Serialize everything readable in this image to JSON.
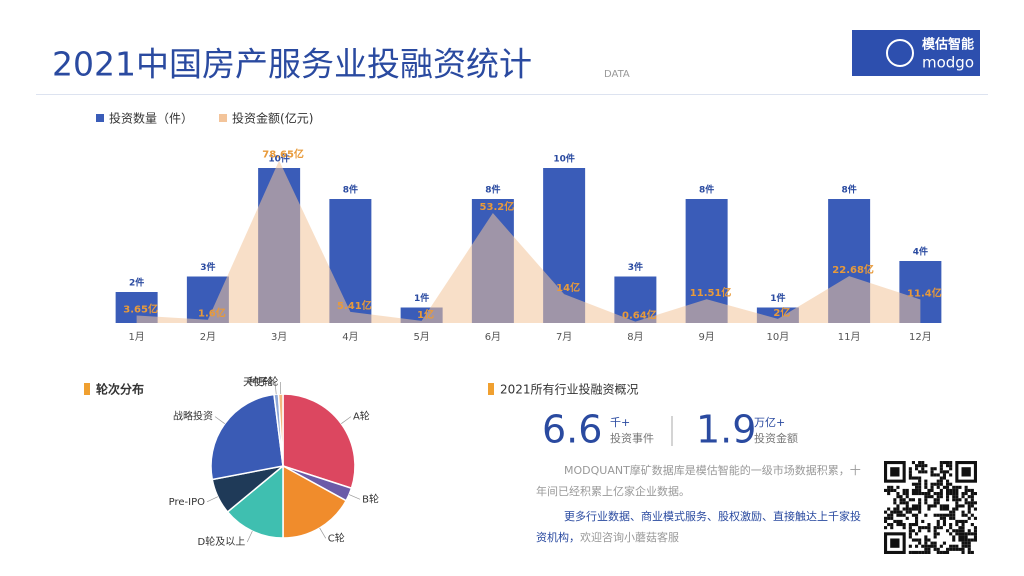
{
  "header": {
    "title": "2021中国房产服务业投融资统计",
    "subtitle": "DATA",
    "logo_cn": "模估智能",
    "logo_en": "modgo"
  },
  "chart_data": [
    {
      "type": "bar",
      "categories": [
        "1月",
        "2月",
        "3月",
        "4月",
        "5月",
        "6月",
        "7月",
        "8月",
        "9月",
        "10月",
        "11月",
        "12月"
      ],
      "series": [
        {
          "name": "投资数量（件）",
          "type": "bar",
          "color": "#3a5cb8",
          "values": [
            2,
            3,
            10,
            8,
            1,
            8,
            10,
            3,
            8,
            1,
            8,
            4
          ],
          "value_labels": [
            "2件",
            "3件",
            "10件",
            "8件",
            "1件",
            "8件",
            "10件",
            "3件",
            "8件",
            "1件",
            "8件",
            "4件"
          ]
        },
        {
          "name": "投资金额(亿元)",
          "type": "area",
          "axis": "y2",
          "color": "#f3c49a",
          "values": [
            3.65,
            1.6,
            78.65,
            5.41,
            1,
            53.2,
            14,
            0.64,
            11.51,
            2,
            22.68,
            11.4
          ],
          "value_labels": [
            "3.65亿",
            "1.6亿",
            "78.65亿",
            "5.41亿",
            "1亿",
            "53.2亿",
            "14亿",
            "0.64亿",
            "11.51亿",
            "2亿",
            "22.68亿",
            "11.4亿"
          ]
        }
      ],
      "ylim": [
        0,
        12
      ],
      "y2lim": [
        0,
        90
      ]
    },
    {
      "type": "pie",
      "title": "轮次分布",
      "categories": [
        "A轮",
        "B轮",
        "C轮",
        "D轮及以上",
        "Pre-IPO",
        "战略投资",
        "天使轮",
        "种子轮"
      ],
      "values": [
        30,
        3,
        17,
        14,
        8,
        26,
        1,
        1
      ],
      "colors": [
        "#dc4760",
        "#6b5ba8",
        "#f08c2c",
        "#3fbfb0",
        "#1f3a58",
        "#3a5bb5",
        "#8fa9d8",
        "#f2b880"
      ]
    }
  ],
  "summary": {
    "title": "2021所有行业投融资概况",
    "stat1": {
      "value": "6.6",
      "unit": "千+",
      "label": "投资事件"
    },
    "stat2": {
      "value": "1.9",
      "unit": "万亿+",
      "label": "投资金额"
    },
    "paragraph1": "MODQUANT摩矿数据库是模估智能的一级市场数据积累，十年间已经积累上亿家企业数据。",
    "paragraph2": "更多行业数据、商业模式服务、股权激励、直接触达上千家投资机构，",
    "paragraph3": "欢迎咨询小蘑菇客服"
  }
}
